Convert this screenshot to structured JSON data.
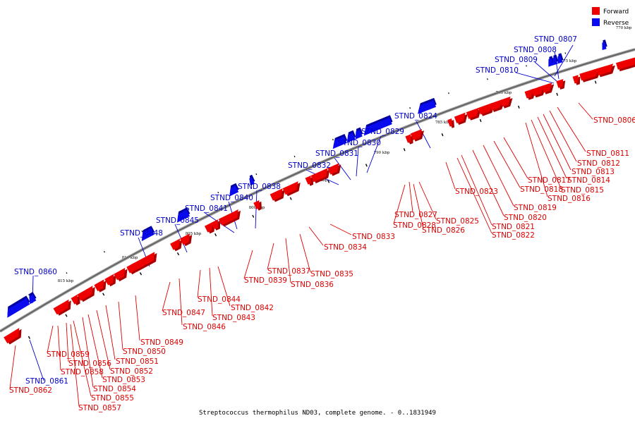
{
  "colors": {
    "forward": "#ee0000",
    "forward_dark": "#a80000",
    "reverse": "#0a0aee",
    "reverse_dark": "#0000a0",
    "forward_text": "#dd0000",
    "reverse_text": "#0000cc",
    "backbone": "#777777"
  },
  "legend": {
    "forward": "Forward",
    "reverse": "Reverse"
  },
  "footer": "Streptococcus thermophilus ND03, complete genome. - 0..1831949",
  "ticks": [
    "775 kbp",
    "780 kbp",
    "785 kbp",
    "790 kbp",
    "795 kbp",
    "800 kbp",
    "805 kbp",
    "810 kbp",
    "815 kbp",
    "770 kbp"
  ],
  "genes": {
    "reverse": [
      "STND_0807",
      "STND_0808",
      "STND_0809",
      "STND_0810",
      "STND_0824",
      "STND_0829",
      "STND_0830",
      "STND_0831",
      "STND_0832",
      "STND_0838",
      "STND_0840",
      "STND_0841",
      "STND_0845",
      "STND_0848",
      "STND_0860",
      "STND_0861"
    ],
    "forward": [
      "STND_0806",
      "STND_0811",
      "STND_0812",
      "STND_0813",
      "STND_0814",
      "STND_0815",
      "STND_0816",
      "STND_0817",
      "STND_0818",
      "STND_0819",
      "STND_0820",
      "STND_0821",
      "STND_0822",
      "STND_0823",
      "STND_0825",
      "STND_0826",
      "STND_0827",
      "STND_0828",
      "STND_0833",
      "STND_0834",
      "STND_0835",
      "STND_0836",
      "STND_0837",
      "STND_0839",
      "STND_0842",
      "STND_0843",
      "STND_0844",
      "STND_0846",
      "STND_0847",
      "STND_0849",
      "STND_0850",
      "STND_0851",
      "STND_0852",
      "STND_0853",
      "STND_0854",
      "STND_0855",
      "STND_0856",
      "STND_0857",
      "STND_0858",
      "STND_0859",
      "STND_0862"
    ]
  }
}
